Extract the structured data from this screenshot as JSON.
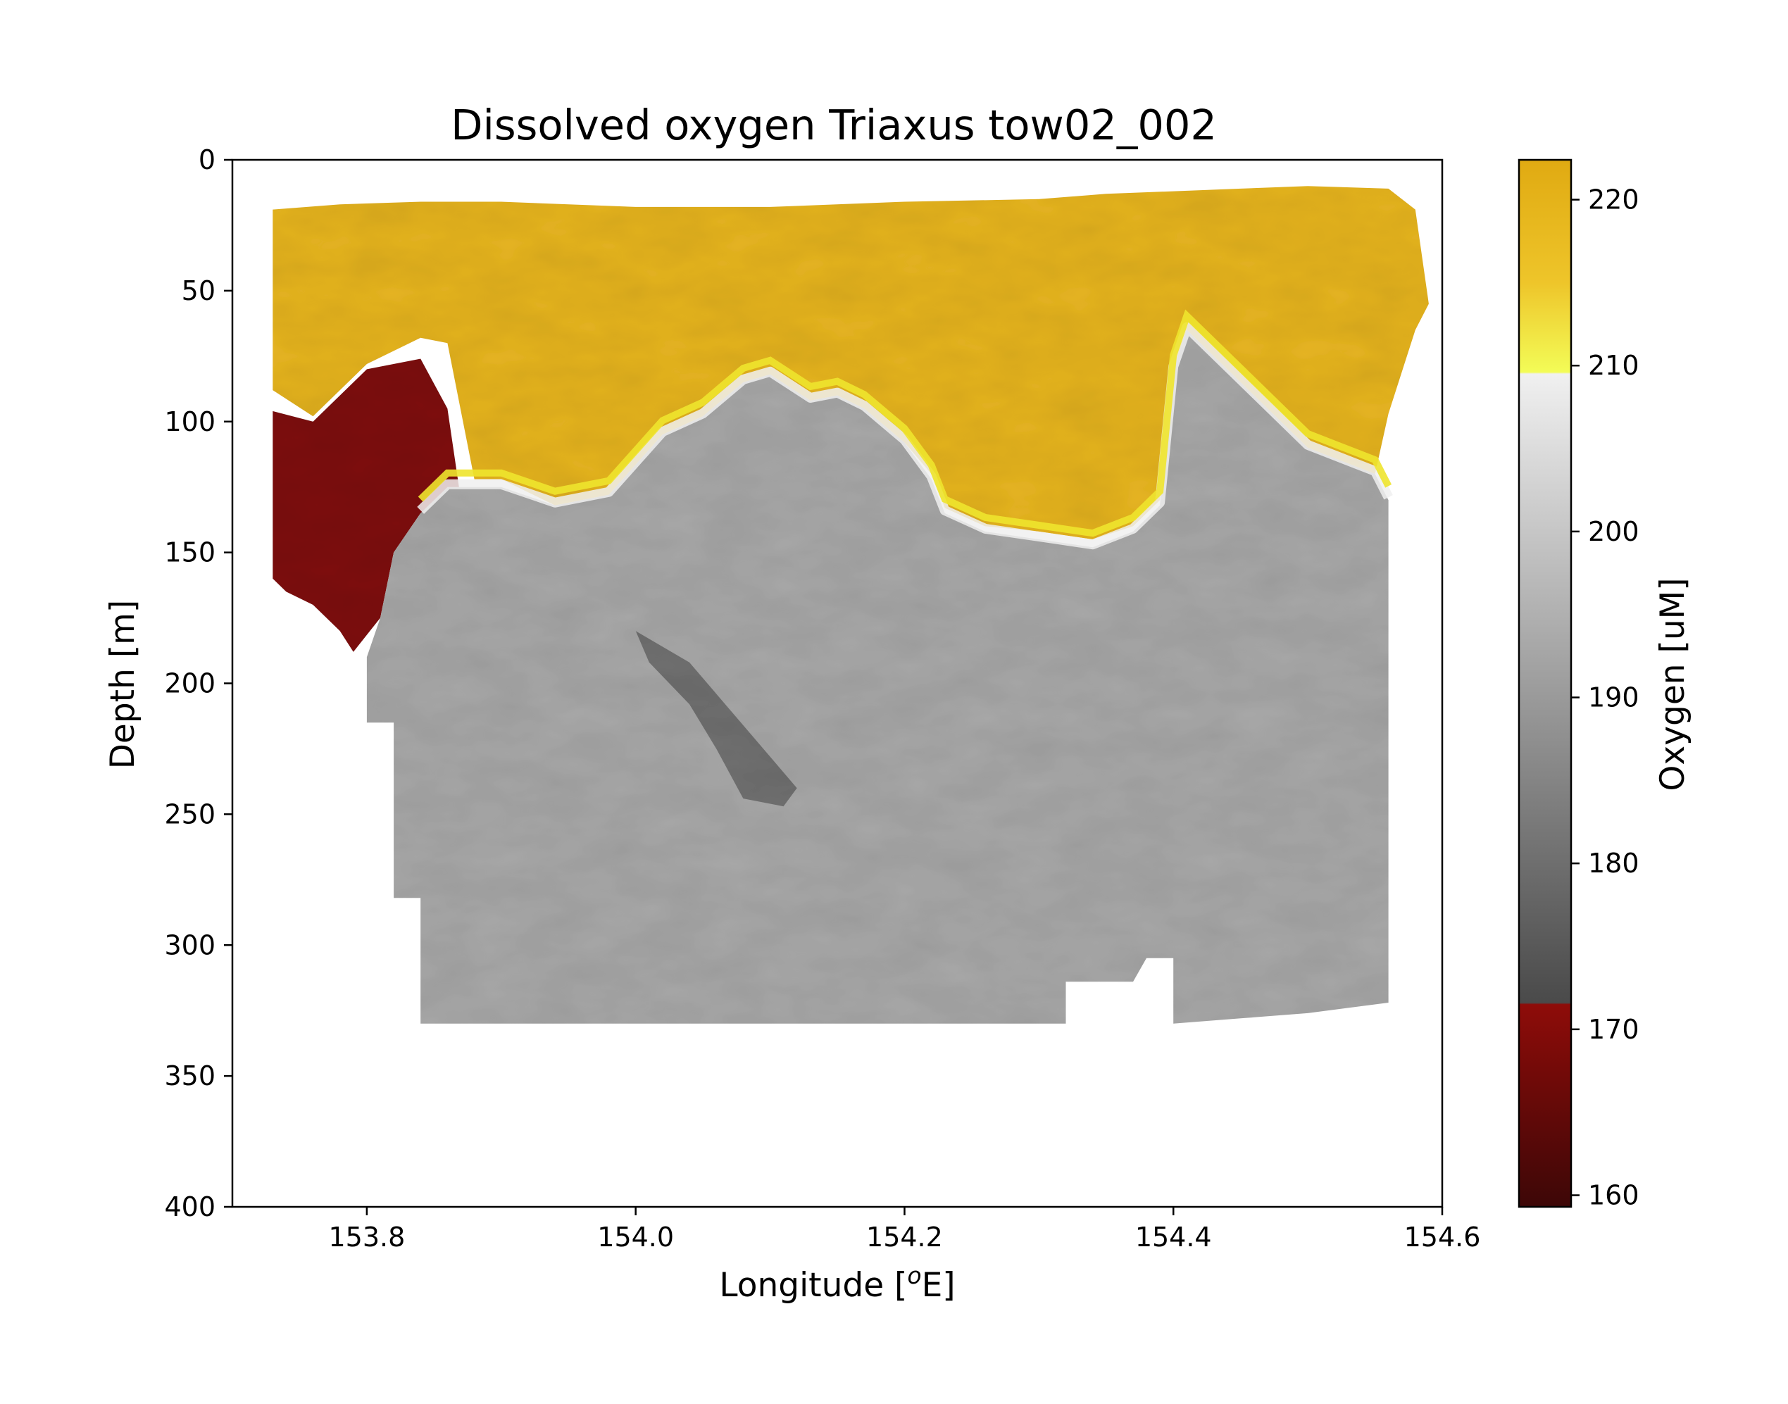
{
  "chart_data": {
    "type": "heatmap",
    "title": "Dissolved oxygen Triaxus tow02_002",
    "xlabel": "Longitude [",
    "xlabel_sup": "o",
    "xlabel_suffix": "E]",
    "ylabel": "Depth [m]",
    "colorbar_label": "Oxygen [uM]",
    "xlim": [
      153.7,
      154.6
    ],
    "ylim": [
      400,
      0
    ],
    "y_inverted": true,
    "x_ticks": [
      153.8,
      154.0,
      154.2,
      154.4,
      154.6
    ],
    "x_tick_labels": [
      "153.8",
      "154.0",
      "154.2",
      "154.4",
      "154.6"
    ],
    "y_ticks": [
      0,
      50,
      100,
      150,
      200,
      250,
      300,
      350,
      400
    ],
    "y_tick_labels": [
      "0",
      "50",
      "100",
      "150",
      "200",
      "250",
      "300",
      "350",
      "400"
    ],
    "colorbar_range": [
      159.3,
      222.4
    ],
    "colorbar_ticks": [
      160,
      170,
      180,
      190,
      200,
      210,
      220
    ],
    "colorbar_tick_labels": [
      "160",
      "170",
      "180",
      "190",
      "200",
      "210",
      "220"
    ],
    "colormap_stops": [
      {
        "value": 159.3,
        "color": "#3d0707"
      },
      {
        "value": 171.5,
        "color": "#8e0c09"
      },
      {
        "value": 171.6,
        "color": "#4a4a4a"
      },
      {
        "value": 190.0,
        "color": "#9a9a9a"
      },
      {
        "value": 209.5,
        "color": "#f0f0f0"
      },
      {
        "value": 209.6,
        "color": "#f3fc57"
      },
      {
        "value": 215.0,
        "color": "#eec52a"
      },
      {
        "value": 222.4,
        "color": "#e0aa12"
      }
    ],
    "colors": {
      "yellow_layer": "#e6b420",
      "yellow_bright": "#eee42e",
      "white_band": "#f0f0f0",
      "gray_deep": "#a8a8a8",
      "gray_dark": "#707070",
      "red_core": "#7e0b09"
    },
    "regions": [
      {
        "name": "surface-oxygen-layer",
        "value_range": [
          212,
          222
        ],
        "description_units": "uM",
        "polygon": [
          [
            153.73,
            19
          ],
          [
            153.78,
            17
          ],
          [
            153.84,
            16
          ],
          [
            153.9,
            16
          ],
          [
            154.0,
            18
          ],
          [
            154.1,
            18
          ],
          [
            154.2,
            16
          ],
          [
            154.3,
            15
          ],
          [
            154.35,
            13
          ],
          [
            154.45,
            11
          ],
          [
            154.5,
            10
          ],
          [
            154.56,
            11
          ],
          [
            154.58,
            19
          ],
          [
            154.59,
            55
          ],
          [
            154.58,
            65
          ],
          [
            154.56,
            97
          ],
          [
            154.55,
            120
          ],
          [
            154.5,
            110
          ],
          [
            154.45,
            85
          ],
          [
            154.41,
            65
          ],
          [
            154.4,
            80
          ],
          [
            154.39,
            130
          ],
          [
            154.37,
            140
          ],
          [
            154.34,
            145
          ],
          [
            154.3,
            142
          ],
          [
            154.26,
            140
          ],
          [
            154.23,
            133
          ],
          [
            154.22,
            120
          ],
          [
            154.2,
            108
          ],
          [
            154.17,
            95
          ],
          [
            154.15,
            90
          ],
          [
            154.13,
            92
          ],
          [
            154.1,
            82
          ],
          [
            154.08,
            85
          ],
          [
            154.05,
            98
          ],
          [
            154.02,
            105
          ],
          [
            153.98,
            128
          ],
          [
            153.94,
            132
          ],
          [
            153.9,
            122
          ],
          [
            153.88,
            122
          ],
          [
            153.86,
            70
          ],
          [
            153.84,
            68
          ],
          [
            153.8,
            78
          ],
          [
            153.76,
            98
          ],
          [
            153.73,
            88
          ]
        ]
      },
      {
        "name": "low-oxygen-core",
        "value_range": [
          159,
          171
        ],
        "description_units": "uM",
        "polygon": [
          [
            153.73,
            96
          ],
          [
            153.76,
            100
          ],
          [
            153.8,
            80
          ],
          [
            153.84,
            76
          ],
          [
            153.86,
            95
          ],
          [
            153.87,
            130
          ],
          [
            153.84,
            135
          ],
          [
            153.82,
            150
          ],
          [
            153.81,
            175
          ],
          [
            153.79,
            188
          ],
          [
            153.78,
            180
          ],
          [
            153.76,
            170
          ],
          [
            153.74,
            165
          ],
          [
            153.73,
            160
          ]
        ]
      },
      {
        "name": "deep-oxygen-layer",
        "value_range": [
          180,
          205
        ],
        "description_units": "uM",
        "polygon": [
          [
            153.84,
            135
          ],
          [
            153.86,
            125
          ],
          [
            153.9,
            125
          ],
          [
            153.94,
            132
          ],
          [
            153.98,
            128
          ],
          [
            154.02,
            105
          ],
          [
            154.05,
            98
          ],
          [
            154.08,
            85
          ],
          [
            154.1,
            82
          ],
          [
            154.13,
            92
          ],
          [
            154.15,
            90
          ],
          [
            154.17,
            95
          ],
          [
            154.2,
            108
          ],
          [
            154.22,
            122
          ],
          [
            154.23,
            135
          ],
          [
            154.26,
            142
          ],
          [
            154.3,
            145
          ],
          [
            154.34,
            148
          ],
          [
            154.37,
            142
          ],
          [
            154.39,
            132
          ],
          [
            154.4,
            80
          ],
          [
            154.41,
            65
          ],
          [
            154.45,
            85
          ],
          [
            154.5,
            110
          ],
          [
            154.55,
            120
          ],
          [
            154.56,
            130
          ],
          [
            154.56,
            322
          ],
          [
            154.5,
            326
          ],
          [
            154.45,
            328
          ],
          [
            154.4,
            330
          ],
          [
            154.4,
            305
          ],
          [
            154.38,
            305
          ],
          [
            154.37,
            314
          ],
          [
            154.32,
            314
          ],
          [
            154.32,
            330
          ],
          [
            154.2,
            330
          ],
          [
            154.1,
            330
          ],
          [
            154.0,
            330
          ],
          [
            153.9,
            330
          ],
          [
            153.84,
            330
          ],
          [
            153.84,
            282
          ],
          [
            153.82,
            282
          ],
          [
            153.82,
            215
          ],
          [
            153.8,
            215
          ],
          [
            153.8,
            190
          ],
          [
            153.81,
            175
          ],
          [
            153.82,
            150
          ]
        ]
      },
      {
        "name": "low-oxygen-streak",
        "value_range": [
          175,
          182
        ],
        "description_units": "uM",
        "polygon": [
          [
            154.0,
            180
          ],
          [
            154.04,
            192
          ],
          [
            154.07,
            210
          ],
          [
            154.1,
            228
          ],
          [
            154.12,
            240
          ],
          [
            154.11,
            247
          ],
          [
            154.08,
            244
          ],
          [
            154.06,
            225
          ],
          [
            154.04,
            208
          ],
          [
            154.01,
            192
          ]
        ]
      }
    ]
  }
}
